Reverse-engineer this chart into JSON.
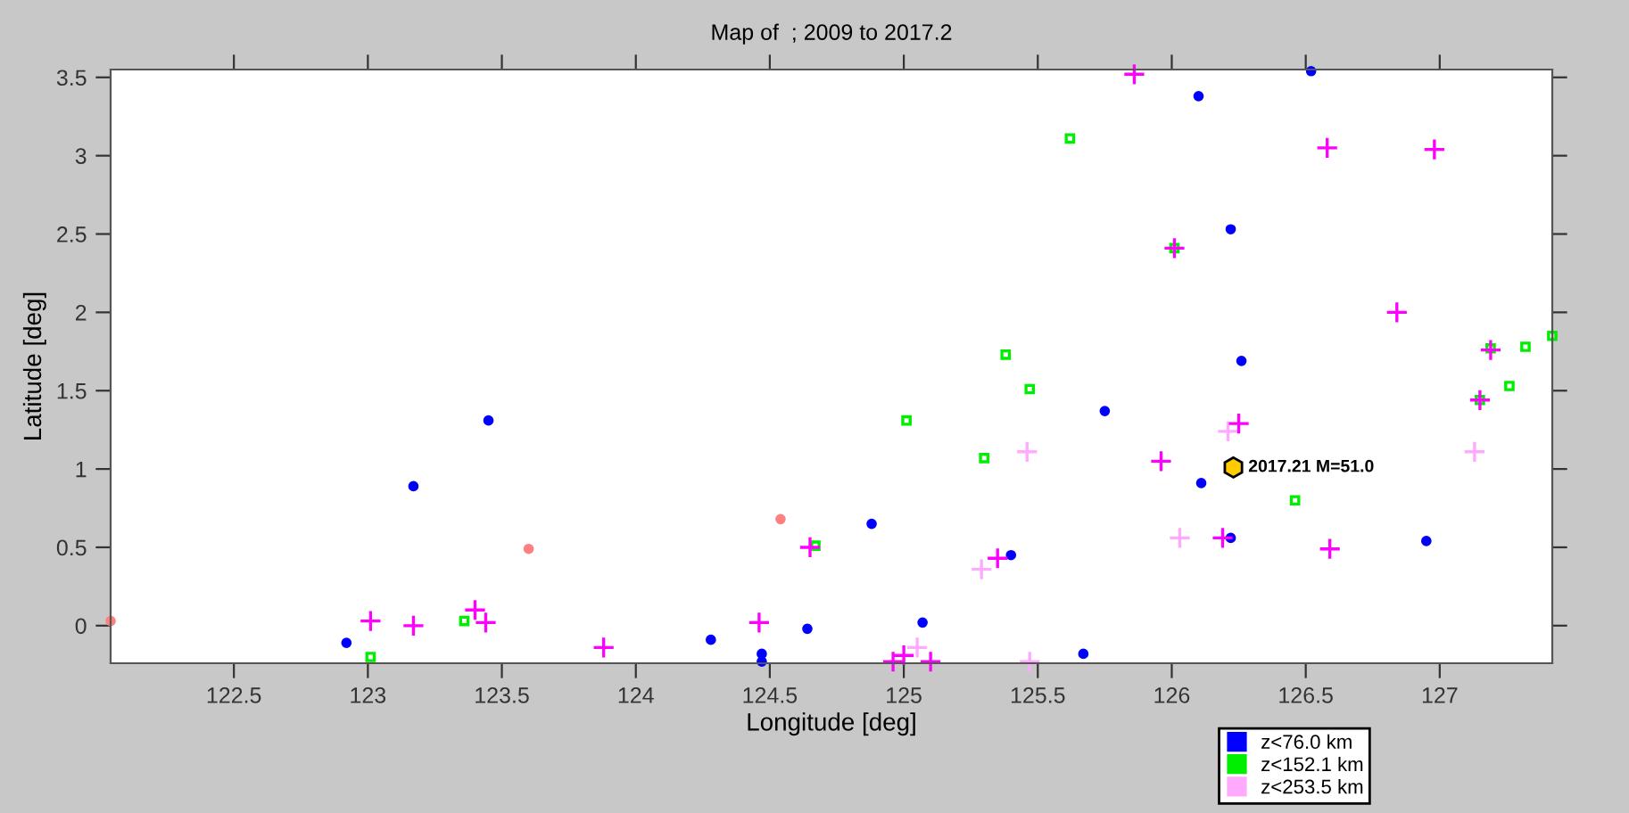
{
  "chart_data": {
    "type": "scatter",
    "title": "Map of  ; 2009 to 2017.2",
    "xlabel": "Longitude [deg]",
    "ylabel": "Latitude [deg]",
    "xlim": [
      122.04,
      127.42
    ],
    "ylim": [
      -0.24,
      3.55
    ],
    "xticks": [
      122.5,
      123,
      123.5,
      124,
      124.5,
      125,
      125.5,
      126,
      126.5,
      127
    ],
    "yticks": [
      0,
      0.5,
      1,
      1.5,
      2,
      2.5,
      3,
      3.5
    ],
    "grid": false,
    "legend": "bottom right",
    "annotations": [
      {
        "text": "2017.21 M=51.0",
        "x": 126.23,
        "y": 1.01
      }
    ],
    "series": [
      {
        "name": "z<76.0 km",
        "color": "#0000ff",
        "marker": "circle",
        "x": [
          122.92,
          123.17,
          123.45,
          124.28,
          124.47,
          124.47,
          124.64,
          124.88,
          125.07,
          125.67,
          125.75,
          126.1,
          126.52,
          126.22,
          126.26,
          126.11,
          126.22,
          126.95,
          125.4
        ],
        "values": [
          -0.11,
          0.89,
          1.31,
          -0.09,
          -0.18,
          -0.23,
          -0.02,
          0.65,
          0.02,
          -0.18,
          1.37,
          3.38,
          3.54,
          2.53,
          1.69,
          0.91,
          0.56,
          0.54,
          0.45
        ]
      },
      {
        "name": "z<152.1 km",
        "color": "#00ee00",
        "marker": "square",
        "x": [
          123.01,
          123.36,
          123.41,
          125.62,
          125.38,
          125.47,
          125.01,
          125.3,
          126.01,
          127.19,
          127.32,
          127.26,
          127.42,
          127.15,
          126.46,
          124.67
        ],
        "values": [
          -0.2,
          0.03,
          null,
          3.11,
          1.73,
          1.51,
          1.31,
          1.07,
          2.41,
          1.77,
          1.78,
          1.53,
          1.85,
          1.44,
          0.8,
          0.51
        ]
      },
      {
        "name": "z<253.5 km",
        "color": "#ffaaff",
        "marker": "cross",
        "x": [
          125.29,
          125.46,
          126.03,
          127.13,
          126.21,
          125.05,
          125.47
        ],
        "values": [
          0.36,
          1.11,
          0.56,
          1.11,
          1.24,
          -0.14,
          -0.23
        ]
      },
      {
        "color": "#ff00ff",
        "marker": "cross",
        "x": [
          123.01,
          123.17,
          123.4,
          123.44,
          123.88,
          124.46,
          124.65,
          124.96,
          125.0,
          125.1,
          125.35,
          125.86,
          126.01,
          126.58,
          126.98,
          126.84,
          127.19,
          127.15,
          126.25,
          126.19,
          126.59,
          125.96
        ],
        "values": [
          0.03,
          0.0,
          0.1,
          0.02,
          -0.14,
          0.02,
          0.5,
          -0.23,
          -0.19,
          -0.23,
          0.43,
          3.52,
          2.41,
          3.05,
          3.04,
          2.0,
          1.76,
          1.44,
          1.29,
          0.56,
          0.49,
          1.05
        ]
      },
      {
        "color": "#ff8080",
        "marker": "circle",
        "x": [
          123.6,
          124.54,
          122.04
        ],
        "values": [
          0.49,
          0.68,
          0.03
        ]
      }
    ]
  }
}
